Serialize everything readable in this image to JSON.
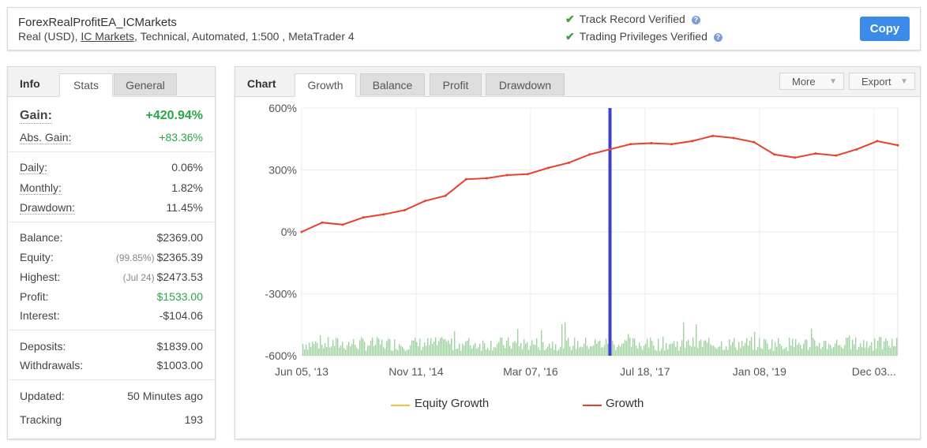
{
  "header": {
    "account_name": "ForexRealProfitEA_ICMarkets",
    "sub_prefix": "Real (USD),",
    "broker": "IC Markets",
    "sub_suffix": ", Technical, Automated, 1:500 , MetaTrader 4",
    "verify_track": "Track Record Verified",
    "verify_trading": "Trading Privileges Verified",
    "copy_label": "Copy",
    "check_icon": "✔",
    "help_icon": "?"
  },
  "info": {
    "tab_info": "Info",
    "tab_stats": "Stats",
    "tab_general": "General",
    "gain_label": "Gain:",
    "gain_value": "+420.94%",
    "abs_gain_label": "Abs. Gain:",
    "abs_gain_value": "+83.36%",
    "daily_label": "Daily:",
    "daily_value": "0.06%",
    "monthly_label": "Monthly:",
    "monthly_value": "1.82%",
    "drawdown_label": "Drawdown:",
    "drawdown_value": "11.45%",
    "balance_label": "Balance:",
    "balance_value": "$2369.00",
    "equity_label": "Equity:",
    "equity_sub": "(99.85%)",
    "equity_value": "$2365.39",
    "highest_label": "Highest:",
    "highest_sub": "(Jul 24)",
    "highest_value": "$2473.53",
    "profit_label": "Profit:",
    "profit_value": "$1533.00",
    "interest_label": "Interest:",
    "interest_value": "-$104.06",
    "deposits_label": "Deposits:",
    "deposits_value": "$1839.00",
    "withdrawals_label": "Withdrawals:",
    "withdrawals_value": "$1003.00",
    "updated_label": "Updated:",
    "updated_value": "50 Minutes ago",
    "tracking_label": "Tracking",
    "tracking_value": "193"
  },
  "chart_panel": {
    "title": "Chart",
    "tabs": [
      "Growth",
      "Balance",
      "Profit",
      "Drawdown"
    ],
    "active_tab": "Growth",
    "more_label": "More",
    "export_label": "Export",
    "dropdown_icon": "▼",
    "legend": [
      "Equity Growth",
      "Growth"
    ]
  },
  "colors": {
    "growth": "#e8412c",
    "equity_growth": "#f0c43a",
    "volume": "#9fd39f",
    "marker": "#3f3fcf",
    "gain_green": "#2aa745",
    "copy_button": "#3c8be8"
  },
  "chart_data": {
    "type": "line",
    "y_ticks": [
      "600%",
      "300%",
      "0%",
      "-300%",
      "-600%"
    ],
    "x_ticks": [
      "Jun 05, '13",
      "Nov 11, '14",
      "Mar 07, '16",
      "Jul 18, '17",
      "Jan 08, '19",
      "Dec 03..."
    ],
    "ylim": [
      -600,
      600
    ],
    "grid": true,
    "legend_position": "bottom",
    "x": [
      "Jun 05, '13",
      "Oct '13",
      "Feb '14",
      "Jul '14",
      "Nov 11, '14",
      "Feb '15",
      "Mar '15",
      "May '15",
      "Aug '15",
      "Dec '15",
      "Mar 07, '16",
      "Jun '16",
      "Sep '16",
      "Jan '17",
      "Apr '17",
      "Jul 18, '17",
      "Sep '17",
      "Nov '17",
      "Jan '18",
      "Feb '18",
      "Mar '18",
      "May '18",
      "Jul '18",
      "Sep '18",
      "Jan 08, '19",
      "Apr '19",
      "Jun '19",
      "Aug '19",
      "Oct '19",
      "Dec '19"
    ],
    "series": [
      {
        "name": "Growth",
        "values": [
          0,
          45,
          35,
          70,
          85,
          105,
          150,
          175,
          255,
          260,
          275,
          280,
          310,
          335,
          375,
          400,
          425,
          430,
          425,
          440,
          465,
          455,
          435,
          375,
          360,
          380,
          370,
          400,
          440,
          420
        ]
      }
    ],
    "marker_x": "Jul 18, '17"
  }
}
